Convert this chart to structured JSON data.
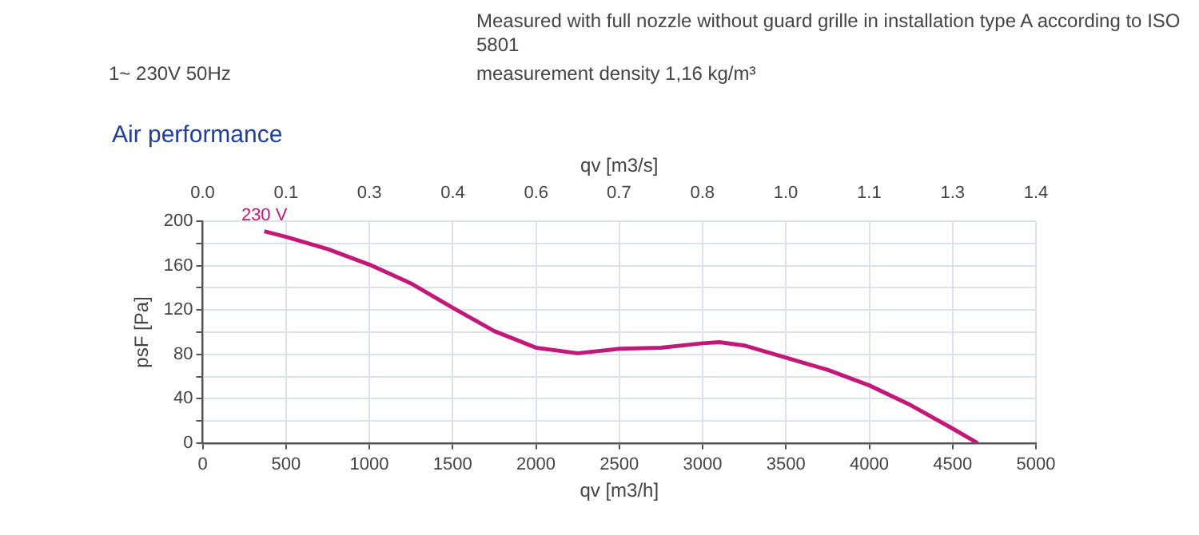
{
  "chart_data": {
    "type": "line",
    "title": "Air performance",
    "annotations": [
      "Measured with full nozzle without guard grille in installation type A according to ISO 5801",
      "1~ 230V 50Hz",
      "measurement density 1,16 kg/m³",
      {
        "text": "230 V",
        "x": 370,
        "y": 191
      }
    ],
    "xlabel": "qv [m3/h]",
    "x2label": "qv [m3/s]",
    "ylabel": "psF [Pa]",
    "series": [
      {
        "color": "#c2187a",
        "x": [
          370,
          500,
          750,
          1000,
          1250,
          1500,
          1750,
          2000,
          2250,
          2500,
          2750,
          3000,
          3100,
          3250,
          3500,
          3750,
          4000,
          4250,
          4500,
          4650
        ],
        "values": [
          191,
          186,
          175,
          161,
          144,
          122,
          101,
          86,
          81,
          85,
          86,
          90,
          91,
          88,
          77,
          66,
          52,
          34,
          13,
          0
        ]
      }
    ],
    "xlim": [
      0,
      5000
    ],
    "xticks": [
      0,
      500,
      1000,
      1500,
      2000,
      2500,
      3000,
      3500,
      4000,
      4500,
      5000
    ],
    "x2lim": [
      0,
      1.389
    ],
    "x2ticks": [
      {
        "value": 0,
        "label": "0.0"
      },
      {
        "value": 0.139,
        "label": "0.1"
      },
      {
        "value": 0.278,
        "label": "0.3"
      },
      {
        "value": 0.417,
        "label": "0.4"
      },
      {
        "value": 0.556,
        "label": "0.6"
      },
      {
        "value": 0.694,
        "label": "0.7"
      },
      {
        "value": 0.833,
        "label": "0.8"
      },
      {
        "value": 0.972,
        "label": "1.0"
      },
      {
        "value": 1.111,
        "label": "1.1"
      },
      {
        "value": 1.25,
        "label": "1.3"
      },
      {
        "value": 1.389,
        "label": "1.4"
      }
    ],
    "ylim": [
      0,
      200
    ],
    "yticks": [
      0,
      {
        "value": 20,
        "label": null
      },
      40,
      {
        "value": 60,
        "label": null
      },
      80,
      {
        "value": 100,
        "label": null
      },
      120,
      {
        "value": 140,
        "label": null
      },
      160,
      {
        "value": 180,
        "label": null
      },
      200
    ],
    "grid": true,
    "legend": false,
    "marker": "none",
    "line_style": "solid"
  }
}
